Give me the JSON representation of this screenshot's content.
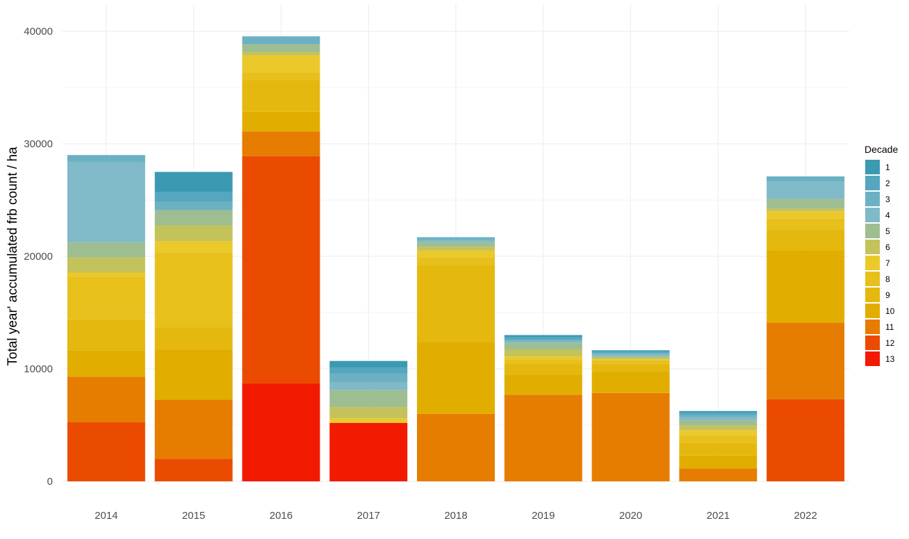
{
  "chart_data": {
    "type": "bar",
    "stacked": true,
    "title": "",
    "xlabel": "",
    "ylabel": "Total year' accumulated frb count / ha",
    "ylim": [
      0,
      40400
    ],
    "yticks": [
      0,
      10000,
      20000,
      30000,
      40000
    ],
    "grid": true,
    "legend_position": "right",
    "legend_title": "Decade",
    "categories": [
      "2014",
      "2015",
      "2016",
      "2017",
      "2018",
      "2019",
      "2020",
      "2021",
      "2022"
    ],
    "series": [
      {
        "name": "13",
        "color": "#F21A00",
        "values": [
          0,
          0,
          8700,
          5200,
          0,
          0,
          0,
          0,
          0
        ]
      },
      {
        "name": "12",
        "color": "#EB4B00",
        "values": [
          5250,
          2000,
          20200,
          0,
          0,
          0,
          0,
          0,
          7300
        ]
      },
      {
        "name": "11",
        "color": "#E67C00",
        "values": [
          4050,
          5250,
          2200,
          0,
          6000,
          7700,
          7850,
          1150,
          6800
        ]
      },
      {
        "name": "10",
        "color": "#E1AE00",
        "values": [
          2350,
          4500,
          1750,
          0,
          6400,
          1800,
          1950,
          1150,
          6450
        ]
      },
      {
        "name": "9",
        "color": "#E4B80E",
        "values": [
          2750,
          1950,
          2800,
          0,
          6800,
          900,
          650,
          1100,
          1850
        ]
      },
      {
        "name": "8",
        "color": "#E7C01C",
        "values": [
          3800,
          6650,
          700,
          0,
          700,
          400,
          300,
          650,
          950
        ]
      },
      {
        "name": "7",
        "color": "#EBC92B",
        "values": [
          350,
          1000,
          1500,
          400,
          600,
          300,
          100,
          500,
          650
        ]
      },
      {
        "name": "6",
        "color": "#C4C25B",
        "values": [
          1350,
          1400,
          300,
          1000,
          350,
          600,
          150,
          400,
          250
        ]
      },
      {
        "name": "5",
        "color": "#9EBE91",
        "values": [
          1350,
          1350,
          700,
          1500,
          400,
          600,
          150,
          500,
          850
        ]
      },
      {
        "name": "4",
        "color": "#80B9C7",
        "values": [
          7100,
          0,
          0,
          700,
          200,
          200,
          100,
          250,
          1550
        ]
      },
      {
        "name": "3",
        "color": "#6BB1C3",
        "values": [
          650,
          750,
          700,
          800,
          250,
          100,
          150,
          200,
          450
        ]
      },
      {
        "name": "2",
        "color": "#54A7BE",
        "values": [
          0,
          850,
          0,
          500,
          0,
          200,
          150,
          200,
          0
        ]
      },
      {
        "name": "1",
        "color": "#3B9AB2",
        "values": [
          0,
          1800,
          0,
          600,
          0,
          200,
          100,
          150,
          0
        ]
      }
    ]
  }
}
